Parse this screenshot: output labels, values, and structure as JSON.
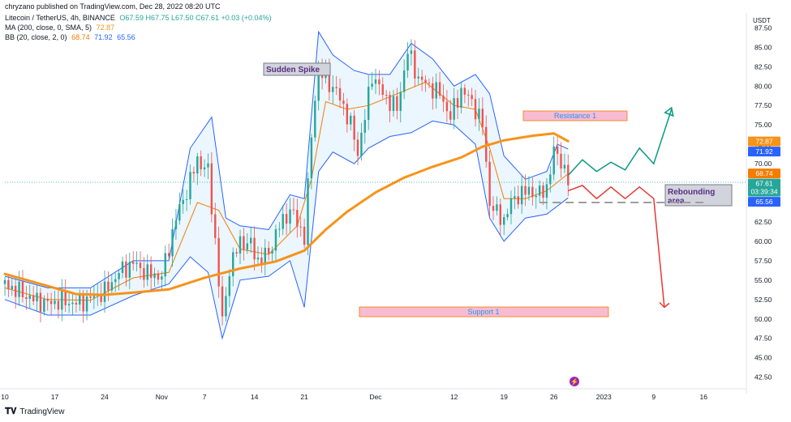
{
  "header": {
    "published": "chryzano published on TradingView.com, Dec 28, 2022 08:20 UTC",
    "symbol": "Litecoin / TetherUS, 4h, BINANCE",
    "ohlc": "O67.59 H67.75 L67.50 C67.61 +0.03 (+0.04%)",
    "ma_label": "MA (200, close, 0, SMA, 5)",
    "ma_value": "72.87",
    "bb_label": "BB (20, close, 2, 0)",
    "bb_mid": "68.74",
    "bb_upper": "71.92",
    "bb_lower": "65.56"
  },
  "footer": {
    "logo_text": "TradingView"
  },
  "colors": {
    "up": "#26a69a",
    "down": "#ef5350",
    "ma": "#f7931a",
    "bb_line": "#2962ff",
    "bb_fill": "#e3f2fd",
    "basis": "#f57c00"
  },
  "chart_data": {
    "type": "line",
    "currency": "USDT",
    "ylim": [
      41,
      89
    ],
    "y_ticks": [
      "42.50",
      "45.00",
      "47.50",
      "50.00",
      "52.50",
      "55.00",
      "57.50",
      "60.00",
      "62.50",
      "65.00",
      "67.50",
      "70.00",
      "72.50",
      "75.00",
      "77.50",
      "80.00",
      "82.50",
      "85.00",
      "87.50"
    ],
    "x_ticks": [
      {
        "label": "10",
        "day": 0
      },
      {
        "label": "17",
        "day": 7
      },
      {
        "label": "24",
        "day": 14
      },
      {
        "label": "Nov",
        "day": 22
      },
      {
        "label": "7",
        "day": 28
      },
      {
        "label": "14",
        "day": 35
      },
      {
        "label": "21",
        "day": 42
      },
      {
        "label": "Dec",
        "day": 52
      },
      {
        "label": "12",
        "day": 63
      },
      {
        "label": "19",
        "day": 70
      },
      {
        "label": "26",
        "day": 77
      },
      {
        "label": "2023",
        "day": 84
      },
      {
        "label": "9",
        "day": 91
      },
      {
        "label": "16",
        "day": 98
      }
    ],
    "xlim_days": [
      0,
      104
    ],
    "series": [
      {
        "name": "Litecoin / TetherUS",
        "points": [
          [
            0,
            54.5
          ],
          [
            2,
            53.5
          ],
          [
            4,
            52.5
          ],
          [
            6,
            52.0
          ],
          [
            8,
            52.3
          ],
          [
            10,
            52.0
          ],
          [
            12,
            52.6
          ],
          [
            14,
            53.5
          ],
          [
            16,
            56.0
          ],
          [
            18,
            57.2
          ],
          [
            20,
            55.8
          ],
          [
            22,
            55.5
          ],
          [
            24,
            63.0
          ],
          [
            25.5,
            66.5
          ],
          [
            27,
            70.5
          ],
          [
            28.5,
            69.0
          ],
          [
            29.5,
            60.0
          ],
          [
            30.5,
            49.5
          ],
          [
            31.5,
            56.5
          ],
          [
            33,
            60.0
          ],
          [
            34.5,
            59.5
          ],
          [
            35.5,
            57.5
          ],
          [
            37,
            58.5
          ],
          [
            38.5,
            62.0
          ],
          [
            40,
            64.0
          ],
          [
            41,
            62.5
          ],
          [
            42,
            60.5
          ],
          [
            43,
            73.5
          ],
          [
            43.8,
            82.0
          ],
          [
            45,
            81.0
          ],
          [
            47,
            78.5
          ],
          [
            48.5,
            75.0
          ],
          [
            49.5,
            71.5
          ],
          [
            50.5,
            76.0
          ],
          [
            51.5,
            81.5
          ],
          [
            53,
            79.0
          ],
          [
            55,
            77.0
          ],
          [
            56.5,
            84.5
          ],
          [
            58,
            81.0
          ],
          [
            59.5,
            80.0
          ],
          [
            61,
            79.0
          ],
          [
            62.5,
            76.0
          ],
          [
            64,
            79.5
          ],
          [
            65.5,
            78.0
          ],
          [
            67,
            75.0
          ],
          [
            68,
            65.0
          ],
          [
            69,
            63.5
          ],
          [
            70,
            62.8
          ],
          [
            71,
            65.0
          ],
          [
            72,
            66.0
          ],
          [
            73.5,
            66.5
          ],
          [
            75,
            66.0
          ],
          [
            76,
            67.0
          ],
          [
            77,
            71.5
          ],
          [
            78,
            70.5
          ],
          [
            79,
            67.6
          ]
        ]
      },
      {
        "name": "MA (200, close, 0, SMA, 5)",
        "points": [
          [
            0,
            55.8
          ],
          [
            5,
            54.5
          ],
          [
            10,
            53.2
          ],
          [
            14,
            53.1
          ],
          [
            18,
            53.4
          ],
          [
            23,
            53.8
          ],
          [
            28,
            55.3
          ],
          [
            33,
            56.5
          ],
          [
            38,
            57.4
          ],
          [
            42,
            58.8
          ],
          [
            45,
            61.5
          ],
          [
            48,
            63.8
          ],
          [
            52,
            66.3
          ],
          [
            56,
            68.2
          ],
          [
            60,
            69.6
          ],
          [
            64,
            70.8
          ],
          [
            67,
            72.2
          ],
          [
            70,
            73.0
          ],
          [
            74,
            73.6
          ],
          [
            77,
            73.9
          ],
          [
            79,
            72.9
          ]
        ]
      },
      {
        "name": "BB (20, close, 2, 0)",
        "points": [
          [
            0,
            54.0
          ],
          [
            6,
            52.5
          ],
          [
            12,
            52.4
          ],
          [
            18,
            55.3
          ],
          [
            23,
            56.0
          ],
          [
            27,
            65.0
          ],
          [
            30,
            64.0
          ],
          [
            33,
            59.0
          ],
          [
            37,
            58.3
          ],
          [
            41,
            62.0
          ],
          [
            43,
            68.0
          ],
          [
            45,
            78.0
          ],
          [
            48,
            77.0
          ],
          [
            51,
            77.5
          ],
          [
            55,
            79.0
          ],
          [
            59,
            80.5
          ],
          [
            63,
            77.5
          ],
          [
            66,
            77.0
          ],
          [
            68,
            72.0
          ],
          [
            70,
            65.5
          ],
          [
            73,
            65.5
          ],
          [
            76,
            66.5
          ],
          [
            79,
            68.7
          ]
        ]
      },
      {
        "name": "BB upper",
        "points": [
          [
            0,
            55.5
          ],
          [
            6,
            54.0
          ],
          [
            12,
            54.0
          ],
          [
            18,
            57.5
          ],
          [
            23,
            57.5
          ],
          [
            26,
            72.0
          ],
          [
            29,
            76.0
          ],
          [
            31,
            63.0
          ],
          [
            33,
            62.0
          ],
          [
            37,
            61.5
          ],
          [
            40,
            66.0
          ],
          [
            42,
            65.5
          ],
          [
            44,
            87.0
          ],
          [
            46,
            84.0
          ],
          [
            49,
            82.0
          ],
          [
            51,
            81.5
          ],
          [
            54,
            81.5
          ],
          [
            57,
            85.5
          ],
          [
            60,
            83.5
          ],
          [
            63,
            80.0
          ],
          [
            66,
            81.5
          ],
          [
            68,
            79.0
          ],
          [
            70,
            71.0
          ],
          [
            73,
            68.0
          ],
          [
            76,
            69.0
          ],
          [
            77.5,
            72.5
          ],
          [
            79,
            71.9
          ]
        ]
      },
      {
        "name": "BB lower",
        "points": [
          [
            0,
            52.5
          ],
          [
            6,
            50.5
          ],
          [
            12,
            50.5
          ],
          [
            18,
            53.0
          ],
          [
            23,
            54.5
          ],
          [
            26,
            58.0
          ],
          [
            28.5,
            56.0
          ],
          [
            30.5,
            47.5
          ],
          [
            33,
            55.0
          ],
          [
            37,
            55.5
          ],
          [
            40,
            57.5
          ],
          [
            42,
            51.5
          ],
          [
            44,
            69.0
          ],
          [
            46,
            71.5
          ],
          [
            49,
            70.0
          ],
          [
            51,
            72.0
          ],
          [
            54,
            73.5
          ],
          [
            57,
            74.0
          ],
          [
            60,
            75.5
          ],
          [
            63,
            75.0
          ],
          [
            66,
            72.5
          ],
          [
            68,
            63.0
          ],
          [
            70,
            60.0
          ],
          [
            73,
            63.0
          ],
          [
            76,
            63.5
          ],
          [
            79,
            65.6
          ]
        ]
      }
    ],
    "price_tags": [
      {
        "value": "72.87",
        "label": "72.87",
        "color": "#f7931a",
        "y": 72.87
      },
      {
        "value": "71.92",
        "label": "71.92",
        "color": "#2962ff",
        "y": 71.92
      },
      {
        "value": "68.74",
        "label": "68.74",
        "color": "#f57c00",
        "y": 68.74
      },
      {
        "value": "67.61",
        "label": "67.61",
        "sub": "03:39:34",
        "color": "#26a69a",
        "y": 67.61
      },
      {
        "value": "65.56",
        "label": "65.56",
        "color": "#2962ff",
        "y": 65.56
      }
    ],
    "annotations": {
      "sudden_spike": "Sudden Spike",
      "resistance": "Resistance 1",
      "support": "Support 1",
      "rebounding_1": "Rebounding",
      "rebounding_2": "area"
    },
    "projections": {
      "bullish": [
        [
          79,
          68.5
        ],
        [
          81,
          70.5
        ],
        [
          83,
          69.0
        ],
        [
          85,
          70.2
        ],
        [
          87,
          69.2
        ],
        [
          89,
          72.0
        ],
        [
          91,
          70.0
        ],
        [
          93.5,
          77.0
        ]
      ],
      "bearish": [
        [
          79,
          66.5
        ],
        [
          81,
          67.2
        ],
        [
          83,
          65.5
        ],
        [
          85,
          67.0
        ],
        [
          87,
          65.5
        ],
        [
          89,
          67.0
        ],
        [
          91,
          65.5
        ],
        [
          92.5,
          51.5
        ]
      ],
      "rebound_dashes": [
        [
          75,
          65.0
        ],
        [
          98,
          65.0
        ]
      ]
    }
  }
}
